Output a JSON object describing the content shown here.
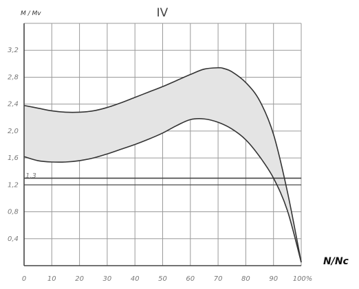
{
  "chart_data": {
    "type": "area",
    "title": "IV",
    "xlabel": "N/Nc",
    "ylabel": "M / Mv",
    "x_ticks": [
      "0",
      "10",
      "20",
      "30",
      "40",
      "50",
      "60",
      "70",
      "80",
      "90",
      "100%"
    ],
    "y_ticks": [
      "0,4",
      "0,8",
      "1,2",
      "1,6",
      "2,0",
      "2,4",
      "2,8",
      "3,2"
    ],
    "xlim": [
      0,
      100
    ],
    "ylim": [
      0,
      3.6
    ],
    "grid": true,
    "series": [
      {
        "x": [
          0,
          5,
          10,
          15,
          20,
          25,
          30,
          35,
          40,
          45,
          50,
          55,
          60,
          65,
          70,
          72,
          75,
          80,
          85,
          90,
          95,
          100
        ],
        "values": [
          2.38,
          2.34,
          2.3,
          2.28,
          2.28,
          2.3,
          2.35,
          2.42,
          2.5,
          2.58,
          2.66,
          2.75,
          2.84,
          2.92,
          2.94,
          2.93,
          2.88,
          2.72,
          2.45,
          1.95,
          1.1,
          0.05
        ]
      },
      {
        "x": [
          0,
          5,
          10,
          15,
          20,
          25,
          30,
          35,
          40,
          45,
          50,
          55,
          60,
          65,
          70,
          75,
          80,
          85,
          90,
          95,
          100
        ],
        "values": [
          1.62,
          1.56,
          1.54,
          1.54,
          1.56,
          1.6,
          1.66,
          1.73,
          1.8,
          1.88,
          1.97,
          2.08,
          2.17,
          2.18,
          2.13,
          2.03,
          1.87,
          1.62,
          1.3,
          0.82,
          0.05
        ]
      }
    ],
    "reference_line": {
      "y": 1.3,
      "label": "1,3"
    },
    "extra_horizontal_lines": [
      1.2
    ]
  },
  "colors": {
    "fill": "#e4e4e4",
    "curve": "#333333",
    "grid": "#9a9a9a",
    "axis": "#444444"
  }
}
